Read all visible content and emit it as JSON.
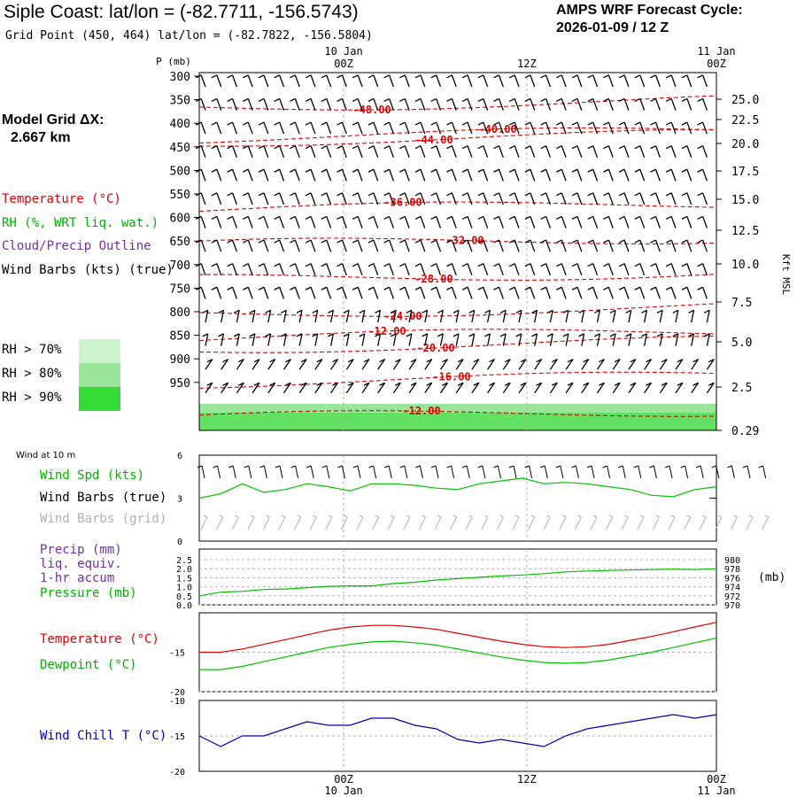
{
  "header": {
    "title": "Siple Coast:  lat/lon = (-82.7711, -156.5743)",
    "subtitle": "Grid Point (450, 464) lat/lon = (-82.7822, -156.5804)",
    "cycle_line1": "AMPS WRF Forecast Cycle:",
    "cycle_line2": "2026-01-09 / 12  Z"
  },
  "sidebar": {
    "model_grid_line1": "Model Grid ΔX:",
    "model_grid_line2": "2.667 km",
    "legend_temperature": "Temperature (°C)",
    "legend_rh": "RH (%, WRT liq. wat.)",
    "legend_cloud": "Cloud/Precip Outline",
    "legend_wind": "Wind Barbs (kts) (true)",
    "rh70": "RH > 70%",
    "rh80": "RH > 80%",
    "rh90": "RH > 90%",
    "wind10m_title": "Wind at 10 m",
    "wind_spd": "Wind Spd (kts)",
    "wind_barbs_true": "Wind Barbs (true)",
    "wind_barbs_grid": "Wind Barbs (grid)",
    "precip_line1": "Precip (mm)",
    "precip_line2": "liq. equiv.",
    "precip_line3": "1-hr accum",
    "pressure_label": "Pressure (mb)",
    "temperature_label": "Temperature (°C)",
    "dewpoint_label": "Dewpoint (°C)",
    "windchill_label": "Wind Chill T (°C)"
  },
  "colors": {
    "temperature": "#e00000",
    "rh": "#00c000",
    "cloud": "#7030a0",
    "wind": "#000000",
    "wind_grid": "#b0b0b0",
    "windchill": "#0000b0",
    "rh70": "#ccf5cc",
    "rh80": "#99e599",
    "rh90": "#33dd33",
    "grid": "#b0b0b0"
  },
  "chart_data": [
    {
      "type": "line",
      "panel": "vertical-cross-section",
      "ylabel_left": "P (mb)",
      "ylabel_right": "Kft MSL",
      "pressure_ticks": [
        "300",
        "350",
        "400",
        "450",
        "500",
        "550",
        "600",
        "650",
        "700",
        "750",
        "800",
        "850",
        "900",
        "950"
      ],
      "height_ticks": [
        "25.0",
        "22.5",
        "20.0",
        "17.5",
        "15.0",
        "12.5",
        "10.0",
        "7.5",
        "5.0",
        "2.5",
        "0.29"
      ],
      "time_ticks": [
        "00Z",
        "12Z",
        "00Z"
      ],
      "date_ticks": [
        "10 Jan",
        "11 Jan"
      ],
      "isotherms": [
        {
          "label": "-48.00",
          "value": -48
        },
        {
          "label": "-44.00",
          "value": -44
        },
        {
          "label": "-40.00",
          "value": -40
        },
        {
          "label": "-36.00",
          "value": -36
        },
        {
          "label": "-32.00",
          "value": -32
        },
        {
          "label": "-28.00",
          "value": -28
        },
        {
          "label": "-24.00",
          "value": -24
        },
        {
          "label": "-20.00",
          "value": -20
        },
        {
          "label": "-16.00",
          "value": -16
        },
        {
          "label": "-12.00",
          "value": -12
        },
        {
          "label": "-12.00",
          "value": -12
        }
      ]
    },
    {
      "type": "line",
      "panel": "wind-10m",
      "title": "Wind Spd (kts)",
      "yticks": [
        "6",
        "3",
        "0"
      ],
      "ylim": [
        0,
        6
      ],
      "x": [
        0,
        1,
        2,
        3,
        4,
        5,
        6,
        7,
        8,
        9,
        10,
        11,
        12,
        13,
        14,
        15,
        16,
        17,
        18,
        19,
        20,
        21,
        22,
        23,
        24
      ],
      "values": [
        3.0,
        3.3,
        4.0,
        3.4,
        3.6,
        4.0,
        3.8,
        3.5,
        4.0,
        4.0,
        3.9,
        3.7,
        3.6,
        4.0,
        4.2,
        4.4,
        4.0,
        4.1,
        4.0,
        3.8,
        3.6,
        3.2,
        3.1,
        3.6,
        3.8
      ]
    },
    {
      "type": "line",
      "panel": "precip-pressure",
      "yticks_left": [
        "2.5",
        "2.0",
        "1.5",
        "1.0",
        "0.5",
        "0.0"
      ],
      "yticks_right": [
        "980",
        "978",
        "976",
        "974",
        "972",
        "970"
      ],
      "ylabel_right": "(mb)",
      "ylim_right": [
        970,
        980
      ],
      "x": [
        0,
        1,
        2,
        3,
        4,
        5,
        6,
        7,
        8,
        9,
        10,
        11,
        12,
        13,
        14,
        15,
        16,
        17,
        18,
        19,
        20,
        21,
        22,
        23,
        24
      ],
      "pressure": [
        972.0,
        972.8,
        973.0,
        973.4,
        973.5,
        973.8,
        974.1,
        974.2,
        974.2,
        974.7,
        975.0,
        975.5,
        975.8,
        976.1,
        976.4,
        976.6,
        976.9,
        977.3,
        977.5,
        977.6,
        977.7,
        977.8,
        977.9,
        977.8,
        978.0
      ]
    },
    {
      "type": "line",
      "panel": "temperature-dewpoint",
      "yticks": [
        "-15",
        "-20"
      ],
      "ylim": [
        -20,
        -10
      ],
      "x": [
        0,
        1,
        2,
        3,
        4,
        5,
        6,
        7,
        8,
        9,
        10,
        11,
        12,
        13,
        14,
        15,
        16,
        17,
        18,
        19,
        20,
        21,
        22,
        23,
        24
      ],
      "series": [
        {
          "name": "Temperature (°C)",
          "values": [
            -15.0,
            -15.0,
            -14.6,
            -14.0,
            -13.4,
            -12.8,
            -12.2,
            -11.8,
            -11.6,
            -11.6,
            -11.8,
            -12.1,
            -12.6,
            -13.1,
            -13.6,
            -14.0,
            -14.3,
            -14.4,
            -14.3,
            -14.0,
            -13.5,
            -13.0,
            -12.4,
            -11.8,
            -11.2
          ]
        },
        {
          "name": "Dewpoint (°C)",
          "values": [
            -17.2,
            -17.2,
            -16.8,
            -16.2,
            -15.6,
            -15.0,
            -14.4,
            -14.0,
            -13.7,
            -13.6,
            -13.8,
            -14.1,
            -14.6,
            -15.1,
            -15.6,
            -16.0,
            -16.3,
            -16.4,
            -16.3,
            -16.0,
            -15.5,
            -15.0,
            -14.4,
            -13.8,
            -13.2
          ]
        }
      ]
    },
    {
      "type": "line",
      "panel": "wind-chill",
      "yticks": [
        "-10",
        "-15",
        "-20"
      ],
      "ylim": [
        -20,
        -10
      ],
      "x": [
        0,
        1,
        2,
        3,
        4,
        5,
        6,
        7,
        8,
        9,
        10,
        11,
        12,
        13,
        14,
        15,
        16,
        17,
        18,
        19,
        20,
        21,
        22,
        23,
        24
      ],
      "series": [
        {
          "name": "Wind Chill T (°C)",
          "values": [
            -15.0,
            -16.5,
            -15.0,
            -15.0,
            -14.0,
            -13.0,
            -13.5,
            -13.5,
            -12.5,
            -12.5,
            -13.5,
            -14.0,
            -15.5,
            -16.0,
            -15.5,
            -16.0,
            -16.5,
            -15.0,
            -14.0,
            -13.5,
            -13.0,
            -12.5,
            -12.0,
            -12.5,
            -12.0
          ]
        }
      ]
    }
  ]
}
